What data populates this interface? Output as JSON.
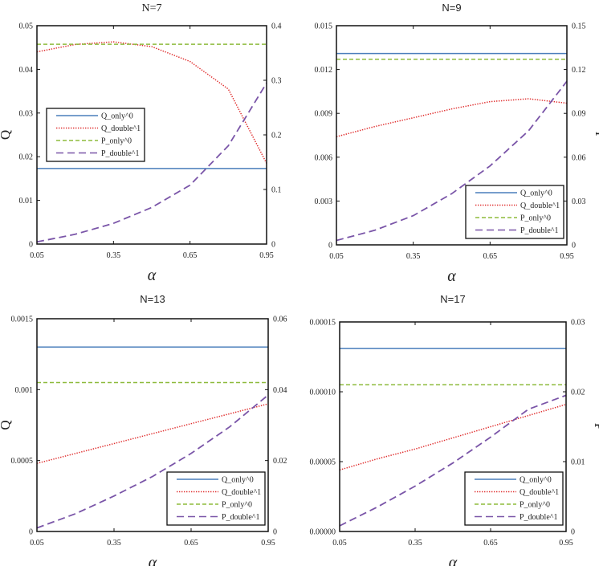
{
  "series_styles": {
    "Q_only^0": {
      "color": "#4a7ebb",
      "dash": "solid"
    },
    "Q_double^1": {
      "color": "#e03030",
      "dash": "dotted"
    },
    "P_only^0": {
      "color": "#8dbb3c",
      "dash": "dashed"
    },
    "P_double^1": {
      "color": "#7a55a8",
      "dash": "long-dashed"
    }
  },
  "chart_data": [
    {
      "type": "line",
      "title": "N=7",
      "xlabel": "α",
      "ylabel": "Q",
      "ylabel_right": "",
      "xlim": [
        0.05,
        0.95
      ],
      "xticks": [
        "0.05",
        "0.35",
        "0.65",
        "0.95"
      ],
      "ylim": [
        0,
        0.05
      ],
      "yticks": [
        "0",
        "0.01",
        "0.02",
        "0.03",
        "0.04",
        "0.05"
      ],
      "ylim_right": [
        0,
        0.4
      ],
      "yticks_right": [
        "0",
        "0.1",
        "0.2",
        "0.3",
        "0.4"
      ],
      "legend": "center-left",
      "grid": false,
      "x": [
        0.05,
        0.2,
        0.35,
        0.5,
        0.65,
        0.8,
        0.95
      ],
      "series": [
        {
          "name": "Q_only^0",
          "axis": "left",
          "values": [
            0.0173,
            0.0173,
            0.0173,
            0.0173,
            0.0173,
            0.0173,
            0.0173
          ]
        },
        {
          "name": "Q_double^1",
          "axis": "left",
          "values": [
            0.044,
            0.0457,
            0.0463,
            0.0452,
            0.0418,
            0.0355,
            0.0185
          ]
        },
        {
          "name": "P_only^0",
          "axis": "right",
          "values": [
            0.366,
            0.366,
            0.366,
            0.366,
            0.366,
            0.366,
            0.366
          ]
        },
        {
          "name": "P_double^1",
          "axis": "right",
          "values": [
            0.004,
            0.018,
            0.038,
            0.067,
            0.108,
            0.18,
            0.295
          ]
        }
      ]
    },
    {
      "type": "line",
      "title": "N=9",
      "xlabel": "α",
      "ylabel": "",
      "ylabel_right": "P",
      "xlim": [
        0.05,
        0.95
      ],
      "xticks": [
        "0.05",
        "0.35",
        "0.65",
        "0.95"
      ],
      "ylim": [
        0,
        0.015
      ],
      "yticks": [
        "0",
        "0.003",
        "0.006",
        "0.009",
        "0.012",
        "0.015"
      ],
      "ylim_right": [
        0,
        0.15
      ],
      "yticks_right": [
        "0",
        "0.03",
        "0.06",
        "0.09",
        "0.12",
        "0.15"
      ],
      "legend": "bottom-right",
      "grid": false,
      "x": [
        0.05,
        0.2,
        0.35,
        0.5,
        0.65,
        0.8,
        0.95
      ],
      "series": [
        {
          "name": "Q_only^0",
          "axis": "left",
          "values": [
            0.0131,
            0.0131,
            0.0131,
            0.0131,
            0.0131,
            0.0131,
            0.0131
          ]
        },
        {
          "name": "Q_double^1",
          "axis": "left",
          "values": [
            0.0074,
            0.0081,
            0.0087,
            0.0093,
            0.0098,
            0.01,
            0.0097
          ]
        },
        {
          "name": "P_only^0",
          "axis": "right",
          "values": [
            0.127,
            0.127,
            0.127,
            0.127,
            0.127,
            0.127,
            0.127
          ]
        },
        {
          "name": "P_double^1",
          "axis": "right",
          "values": [
            0.003,
            0.01,
            0.02,
            0.035,
            0.054,
            0.078,
            0.112
          ]
        }
      ]
    },
    {
      "type": "line",
      "title": "N=13",
      "xlabel": "α",
      "ylabel": "Q",
      "ylabel_right": "",
      "xlim": [
        0.05,
        0.95
      ],
      "xticks": [
        "0.05",
        "0.35",
        "0.65",
        "0.95"
      ],
      "ylim": [
        0,
        0.0015
      ],
      "yticks": [
        "0",
        "0.0005",
        "0.001",
        "0.0015"
      ],
      "ylim_right": [
        0,
        0.06
      ],
      "yticks_right": [
        "0",
        "0.02",
        "0.04",
        "0.06"
      ],
      "legend": "bottom-right",
      "grid": false,
      "x": [
        0.05,
        0.2,
        0.35,
        0.5,
        0.65,
        0.8,
        0.95
      ],
      "series": [
        {
          "name": "Q_only^0",
          "axis": "left",
          "values": [
            0.0013,
            0.0013,
            0.0013,
            0.0013,
            0.0013,
            0.0013,
            0.0013
          ]
        },
        {
          "name": "Q_double^1",
          "axis": "left",
          "values": [
            0.00048,
            0.00055,
            0.00062,
            0.00069,
            0.00076,
            0.00083,
            0.0009
          ]
        },
        {
          "name": "P_only^0",
          "axis": "right",
          "values": [
            0.042,
            0.042,
            0.042,
            0.042,
            0.042,
            0.042,
            0.042
          ]
        },
        {
          "name": "P_double^1",
          "axis": "right",
          "values": [
            0.001,
            0.005,
            0.01,
            0.0155,
            0.022,
            0.0295,
            0.0385
          ]
        }
      ]
    },
    {
      "type": "line",
      "title": "N=17",
      "xlabel": "α",
      "ylabel": "",
      "ylabel_right": "P",
      "xlim": [
        0.05,
        0.95
      ],
      "xticks": [
        "0.05",
        "0.35",
        "0.65",
        "0.95"
      ],
      "ylim": [
        0,
        0.00015
      ],
      "yticks": [
        "0.00000",
        "0.00005",
        "0.00010",
        "0.00015"
      ],
      "ylim_right": [
        0,
        0.03
      ],
      "yticks_right": [
        "0",
        "0.01",
        "0.02",
        "0.03"
      ],
      "legend": "bottom-right",
      "grid": false,
      "x": [
        0.05,
        0.2,
        0.35,
        0.5,
        0.65,
        0.8,
        0.95
      ],
      "series": [
        {
          "name": "Q_only^0",
          "axis": "left",
          "values": [
            0.000131,
            0.000131,
            0.000131,
            0.000131,
            0.000131,
            0.000131,
            0.000131
          ]
        },
        {
          "name": "Q_double^1",
          "axis": "left",
          "values": [
            4.4e-05,
            5.2e-05,
            5.9e-05,
            6.7e-05,
            7.5e-05,
            8.3e-05,
            9.1e-05
          ]
        },
        {
          "name": "P_only^0",
          "axis": "right",
          "values": [
            0.021,
            0.021,
            0.021,
            0.021,
            0.021,
            0.021,
            0.021
          ]
        },
        {
          "name": "P_double^1",
          "axis": "right",
          "values": [
            0.0008,
            0.0035,
            0.0065,
            0.0098,
            0.0135,
            0.0175,
            0.0195
          ]
        }
      ]
    }
  ]
}
